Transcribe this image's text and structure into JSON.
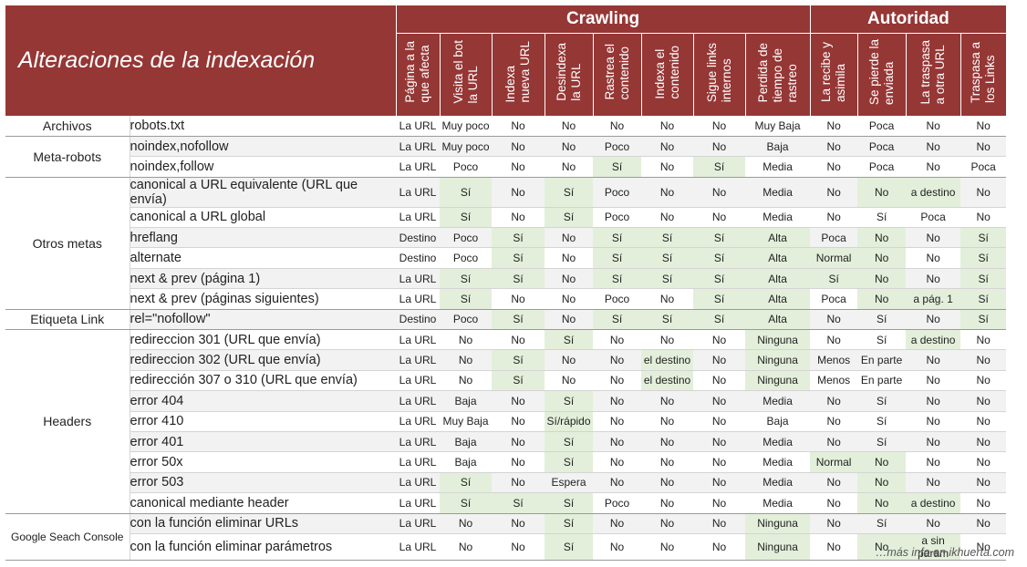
{
  "title": "Alteraciones de la indexación",
  "groups": {
    "crawling": "Crawling",
    "autoridad": "Autoridad"
  },
  "columns": [
    "Página a la\nque afecta",
    "Visita el bot\nla URL",
    "Indexa\nnueva URL",
    "Desindexa\nla URL",
    "Rastrea el\ncontenido",
    "Indexa el\ncontenido",
    "Sigue links\ninternos",
    "Perdida de\ntiempo de\nrastreo",
    "La recibe y\nasimila",
    "Se pierde la\nenviada",
    "La traspasa\na otra URL",
    "Traspasa a\nlos Links"
  ],
  "highlight_color": "#e3efda",
  "header_color": "#953735",
  "sections": [
    {
      "name": "Archivos",
      "rows": [
        {
          "label": "robots.txt",
          "cells": [
            "La URL",
            "Muy poco",
            "No",
            "No",
            "No",
            "No",
            "No",
            "Muy Baja",
            "No",
            "Poca",
            "No",
            "No"
          ],
          "hl": []
        }
      ]
    },
    {
      "name": "Meta-robots",
      "rows": [
        {
          "label": "noindex,nofollow",
          "cells": [
            "La URL",
            "Muy poco",
            "No",
            "No",
            "Poco",
            "No",
            "No",
            "Baja",
            "No",
            "Poca",
            "No",
            "No"
          ],
          "hl": []
        },
        {
          "label": "noindex,follow",
          "cells": [
            "La URL",
            "Poco",
            "No",
            "No",
            "Sí",
            "No",
            "Sí",
            "Media",
            "No",
            "Poca",
            "No",
            "Poca"
          ],
          "hl": [
            4,
            6
          ]
        }
      ]
    },
    {
      "name": "Otros metas",
      "rows": [
        {
          "label": "canonical a URL equivalente (URL que envía)",
          "cells": [
            "La URL",
            "Sí",
            "No",
            "Sí",
            "Poco",
            "No",
            "No",
            "Media",
            "No",
            "No",
            "a destino",
            "No"
          ],
          "hl": [
            1,
            3,
            9,
            10
          ]
        },
        {
          "label": "canonical a URL global",
          "cells": [
            "La URL",
            "Sí",
            "No",
            "Sí",
            "Poco",
            "No",
            "No",
            "Media",
            "No",
            "Sí",
            "Poca",
            "No"
          ],
          "hl": [
            1,
            3
          ]
        },
        {
          "label": "hreflang",
          "cells": [
            "Destino",
            "Poco",
            "Sí",
            "No",
            "Sí",
            "Sí",
            "Sí",
            "Alta",
            "Poca",
            "No",
            "No",
            "Sí"
          ],
          "hl": [
            2,
            4,
            5,
            6,
            7,
            9,
            11
          ]
        },
        {
          "label": "alternate",
          "cells": [
            "Destino",
            "Poco",
            "Sí",
            "No",
            "Sí",
            "Sí",
            "Sí",
            "Alta",
            "Normal",
            "No",
            "No",
            "Sí"
          ],
          "hl": [
            2,
            4,
            5,
            6,
            7,
            8,
            9,
            11
          ]
        },
        {
          "label": "next & prev (página 1)",
          "cells": [
            "La URL",
            "Sí",
            "Sí",
            "No",
            "Sí",
            "Sí",
            "Sí",
            "Alta",
            "Sí",
            "No",
            "No",
            "Sí"
          ],
          "hl": [
            1,
            2,
            4,
            5,
            6,
            7,
            8,
            9,
            11
          ]
        },
        {
          "label": "next & prev (páginas siguientes)",
          "cells": [
            "La URL",
            "Sí",
            "No",
            "No",
            "Poco",
            "No",
            "Sí",
            "Alta",
            "Poca",
            "No",
            "a pág. 1",
            "Sí"
          ],
          "hl": [
            1,
            6,
            7,
            9,
            10,
            11
          ]
        }
      ]
    },
    {
      "name": "Etiqueta Link",
      "rows": [
        {
          "label": "rel=\"nofollow\"",
          "cells": [
            "Destino",
            "Poco",
            "Sí",
            "No",
            "Sí",
            "Sí",
            "Sí",
            "Alta",
            "No",
            "Sí",
            "No",
            "Sí"
          ],
          "hl": [
            2,
            4,
            5,
            6,
            7,
            11
          ]
        }
      ]
    },
    {
      "name": "Headers",
      "rows": [
        {
          "label": "redireccion 301 (URL que envía)",
          "cells": [
            "La URL",
            "No",
            "No",
            "Sí",
            "No",
            "No",
            "No",
            "Ninguna",
            "No",
            "Sí",
            "a destino",
            "No"
          ],
          "hl": [
            3,
            7,
            10
          ]
        },
        {
          "label": "redireccion 302 (URL que envía)",
          "cells": [
            "La URL",
            "No",
            "Sí",
            "No",
            "No",
            "el destino",
            "No",
            "Ninguna",
            "Menos",
            "En parte",
            "No",
            "No"
          ],
          "hl": [
            2,
            5,
            7
          ]
        },
        {
          "label": "redirección 307 o 310 (URL que envía)",
          "cells": [
            "La URL",
            "No",
            "Sí",
            "No",
            "No",
            "el destino",
            "No",
            "Ninguna",
            "Menos",
            "En parte",
            "No",
            "No"
          ],
          "hl": [
            2,
            5,
            7
          ]
        },
        {
          "label": "error 404",
          "cells": [
            "La URL",
            "Baja",
            "No",
            "Sí",
            "No",
            "No",
            "No",
            "Media",
            "No",
            "Sí",
            "No",
            "No"
          ],
          "hl": [
            3
          ]
        },
        {
          "label": "error 410",
          "cells": [
            "La URL",
            "Muy Baja",
            "No",
            "Sí/rápido",
            "No",
            "No",
            "No",
            "Baja",
            "No",
            "Sí",
            "No",
            "No"
          ],
          "hl": [
            3
          ]
        },
        {
          "label": "error 401",
          "cells": [
            "La URL",
            "Baja",
            "No",
            "Sí",
            "No",
            "No",
            "No",
            "Media",
            "No",
            "Sí",
            "No",
            "No"
          ],
          "hl": [
            3
          ]
        },
        {
          "label": "error 50x",
          "cells": [
            "La URL",
            "Baja",
            "No",
            "Sí",
            "No",
            "No",
            "No",
            "Media",
            "Normal",
            "No",
            "No",
            "No"
          ],
          "hl": [
            3,
            8,
            9
          ]
        },
        {
          "label": "error 503",
          "cells": [
            "La URL",
            "Sí",
            "No",
            "Espera",
            "No",
            "No",
            "No",
            "Media",
            "No",
            "No",
            "No",
            "No"
          ],
          "hl": [
            1,
            9
          ]
        },
        {
          "label": "canonical mediante header",
          "cells": [
            "La URL",
            "Sí",
            "Sí",
            "Sí",
            "Poco",
            "No",
            "No",
            "Media",
            "No",
            "No",
            "a destino",
            "No"
          ],
          "hl": [
            1,
            2,
            3,
            9,
            10
          ]
        }
      ]
    },
    {
      "name": "Google Seach Console",
      "rows": [
        {
          "label": "con la función eliminar URLs",
          "cells": [
            "La URL",
            "No",
            "No",
            "Sí",
            "No",
            "No",
            "No",
            "Ninguna",
            "No",
            "Sí",
            "No",
            "No"
          ],
          "hl": [
            3,
            7
          ]
        },
        {
          "label": "con la función eliminar parámetros",
          "cells": [
            "La URL",
            "No",
            "No",
            "Sí",
            "No",
            "No",
            "No",
            "Ninguna",
            "No",
            "No",
            "a sin param",
            "No"
          ],
          "hl": [
            3,
            7,
            9,
            10
          ]
        }
      ]
    }
  ],
  "footer": "…más info en ikhuerta.com"
}
